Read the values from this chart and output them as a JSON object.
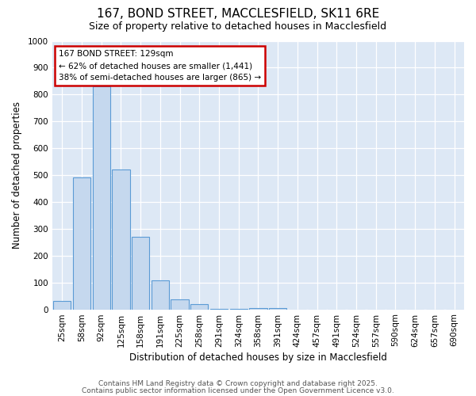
{
  "title": "167, BOND STREET, MACCLESFIELD, SK11 6RE",
  "subtitle": "Size of property relative to detached houses in Macclesfield",
  "xlabel": "Distribution of detached houses by size in Macclesfield",
  "ylabel": "Number of detached properties",
  "categories": [
    "25sqm",
    "58sqm",
    "92sqm",
    "125sqm",
    "158sqm",
    "191sqm",
    "225sqm",
    "258sqm",
    "291sqm",
    "324sqm",
    "358sqm",
    "391sqm",
    "424sqm",
    "457sqm",
    "491sqm",
    "524sqm",
    "557sqm",
    "590sqm",
    "624sqm",
    "657sqm",
    "690sqm"
  ],
  "values": [
    30,
    490,
    830,
    520,
    270,
    108,
    38,
    20,
    3,
    2,
    5,
    4,
    0,
    0,
    0,
    0,
    0,
    0,
    0,
    0,
    0
  ],
  "bar_color": "#c5d8ee",
  "bar_edge_color": "#5b9bd5",
  "annotation_title": "167 BOND STREET: 129sqm",
  "annotation_line1": "← 62% of detached houses are smaller (1,441)",
  "annotation_line2": "38% of semi-detached houses are larger (865) →",
  "annotation_box_color": "#ffffff",
  "annotation_box_edge_color": "#cc0000",
  "ylim": [
    0,
    1000
  ],
  "yticks": [
    0,
    100,
    200,
    300,
    400,
    500,
    600,
    700,
    800,
    900,
    1000
  ],
  "footer_line1": "Contains HM Land Registry data © Crown copyright and database right 2025.",
  "footer_line2": "Contains public sector information licensed under the Open Government Licence v3.0.",
  "fig_bg_color": "#ffffff",
  "plot_bg_color": "#dde8f5",
  "grid_color": "#ffffff",
  "title_fontsize": 11,
  "subtitle_fontsize": 9,
  "axis_label_fontsize": 8.5,
  "tick_fontsize": 7.5,
  "footer_fontsize": 6.5,
  "annot_fontsize": 7.5
}
